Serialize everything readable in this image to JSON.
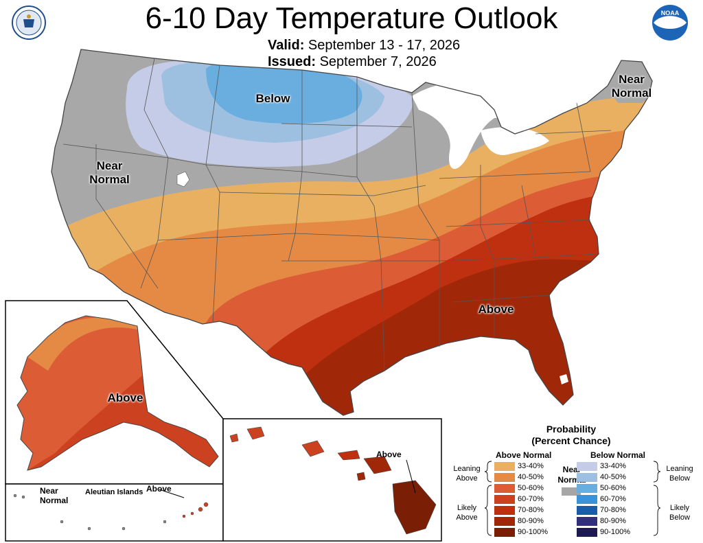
{
  "header": {
    "title": "6-10 Day Temperature Outlook",
    "valid_label": "Valid:",
    "valid_value": "September 13 - 17, 2026",
    "issued_label": "Issued:",
    "issued_value": "September 7, 2026"
  },
  "logos": {
    "left": "department-of-commerce-seal",
    "right": "noaa-logo",
    "noaa_text": "NOAA"
  },
  "map_labels": {
    "below": "Below",
    "near_normal_west": "Near\nNormal",
    "near_normal_maine": "Near\nNormal",
    "above_se": "Above",
    "above_alaska": "Above",
    "above_hawaii": "Above",
    "aleutian": "Aleutian Islands",
    "above_aleutian": "Above",
    "near_normal_aleutian": "Near\nNormal"
  },
  "legend": {
    "title": "Probability\n(Percent Chance)",
    "above_header": "Above Normal",
    "below_header": "Below Normal",
    "near_normal": "Near\nNormal",
    "near_color": "#a6a6a6",
    "leaning_above": "Leaning\nAbove",
    "likely_above": "Likely\nAbove",
    "leaning_below": "Leaning\nBelow",
    "likely_below": "Likely\nBelow",
    "above": [
      {
        "label": "33-40%",
        "color": "#e8b060"
      },
      {
        "label": "40-50%",
        "color": "#e48a45"
      },
      {
        "label": "50-60%",
        "color": "#db5c35"
      },
      {
        "label": "60-70%",
        "color": "#cc4220"
      },
      {
        "label": "70-80%",
        "color": "#be3010"
      },
      {
        "label": "80-90%",
        "color": "#a02808"
      },
      {
        "label": "90-100%",
        "color": "#7a1e06"
      }
    ],
    "below": [
      {
        "label": "33-40%",
        "color": "#c5cce8"
      },
      {
        "label": "40-50%",
        "color": "#9dbfe0"
      },
      {
        "label": "50-60%",
        "color": "#6aaee0"
      },
      {
        "label": "60-70%",
        "color": "#3a93d8"
      },
      {
        "label": "70-80%",
        "color": "#1a5ca8"
      },
      {
        "label": "80-90%",
        "color": "#32307a"
      },
      {
        "label": "90-100%",
        "color": "#1d1a52"
      }
    ]
  }
}
